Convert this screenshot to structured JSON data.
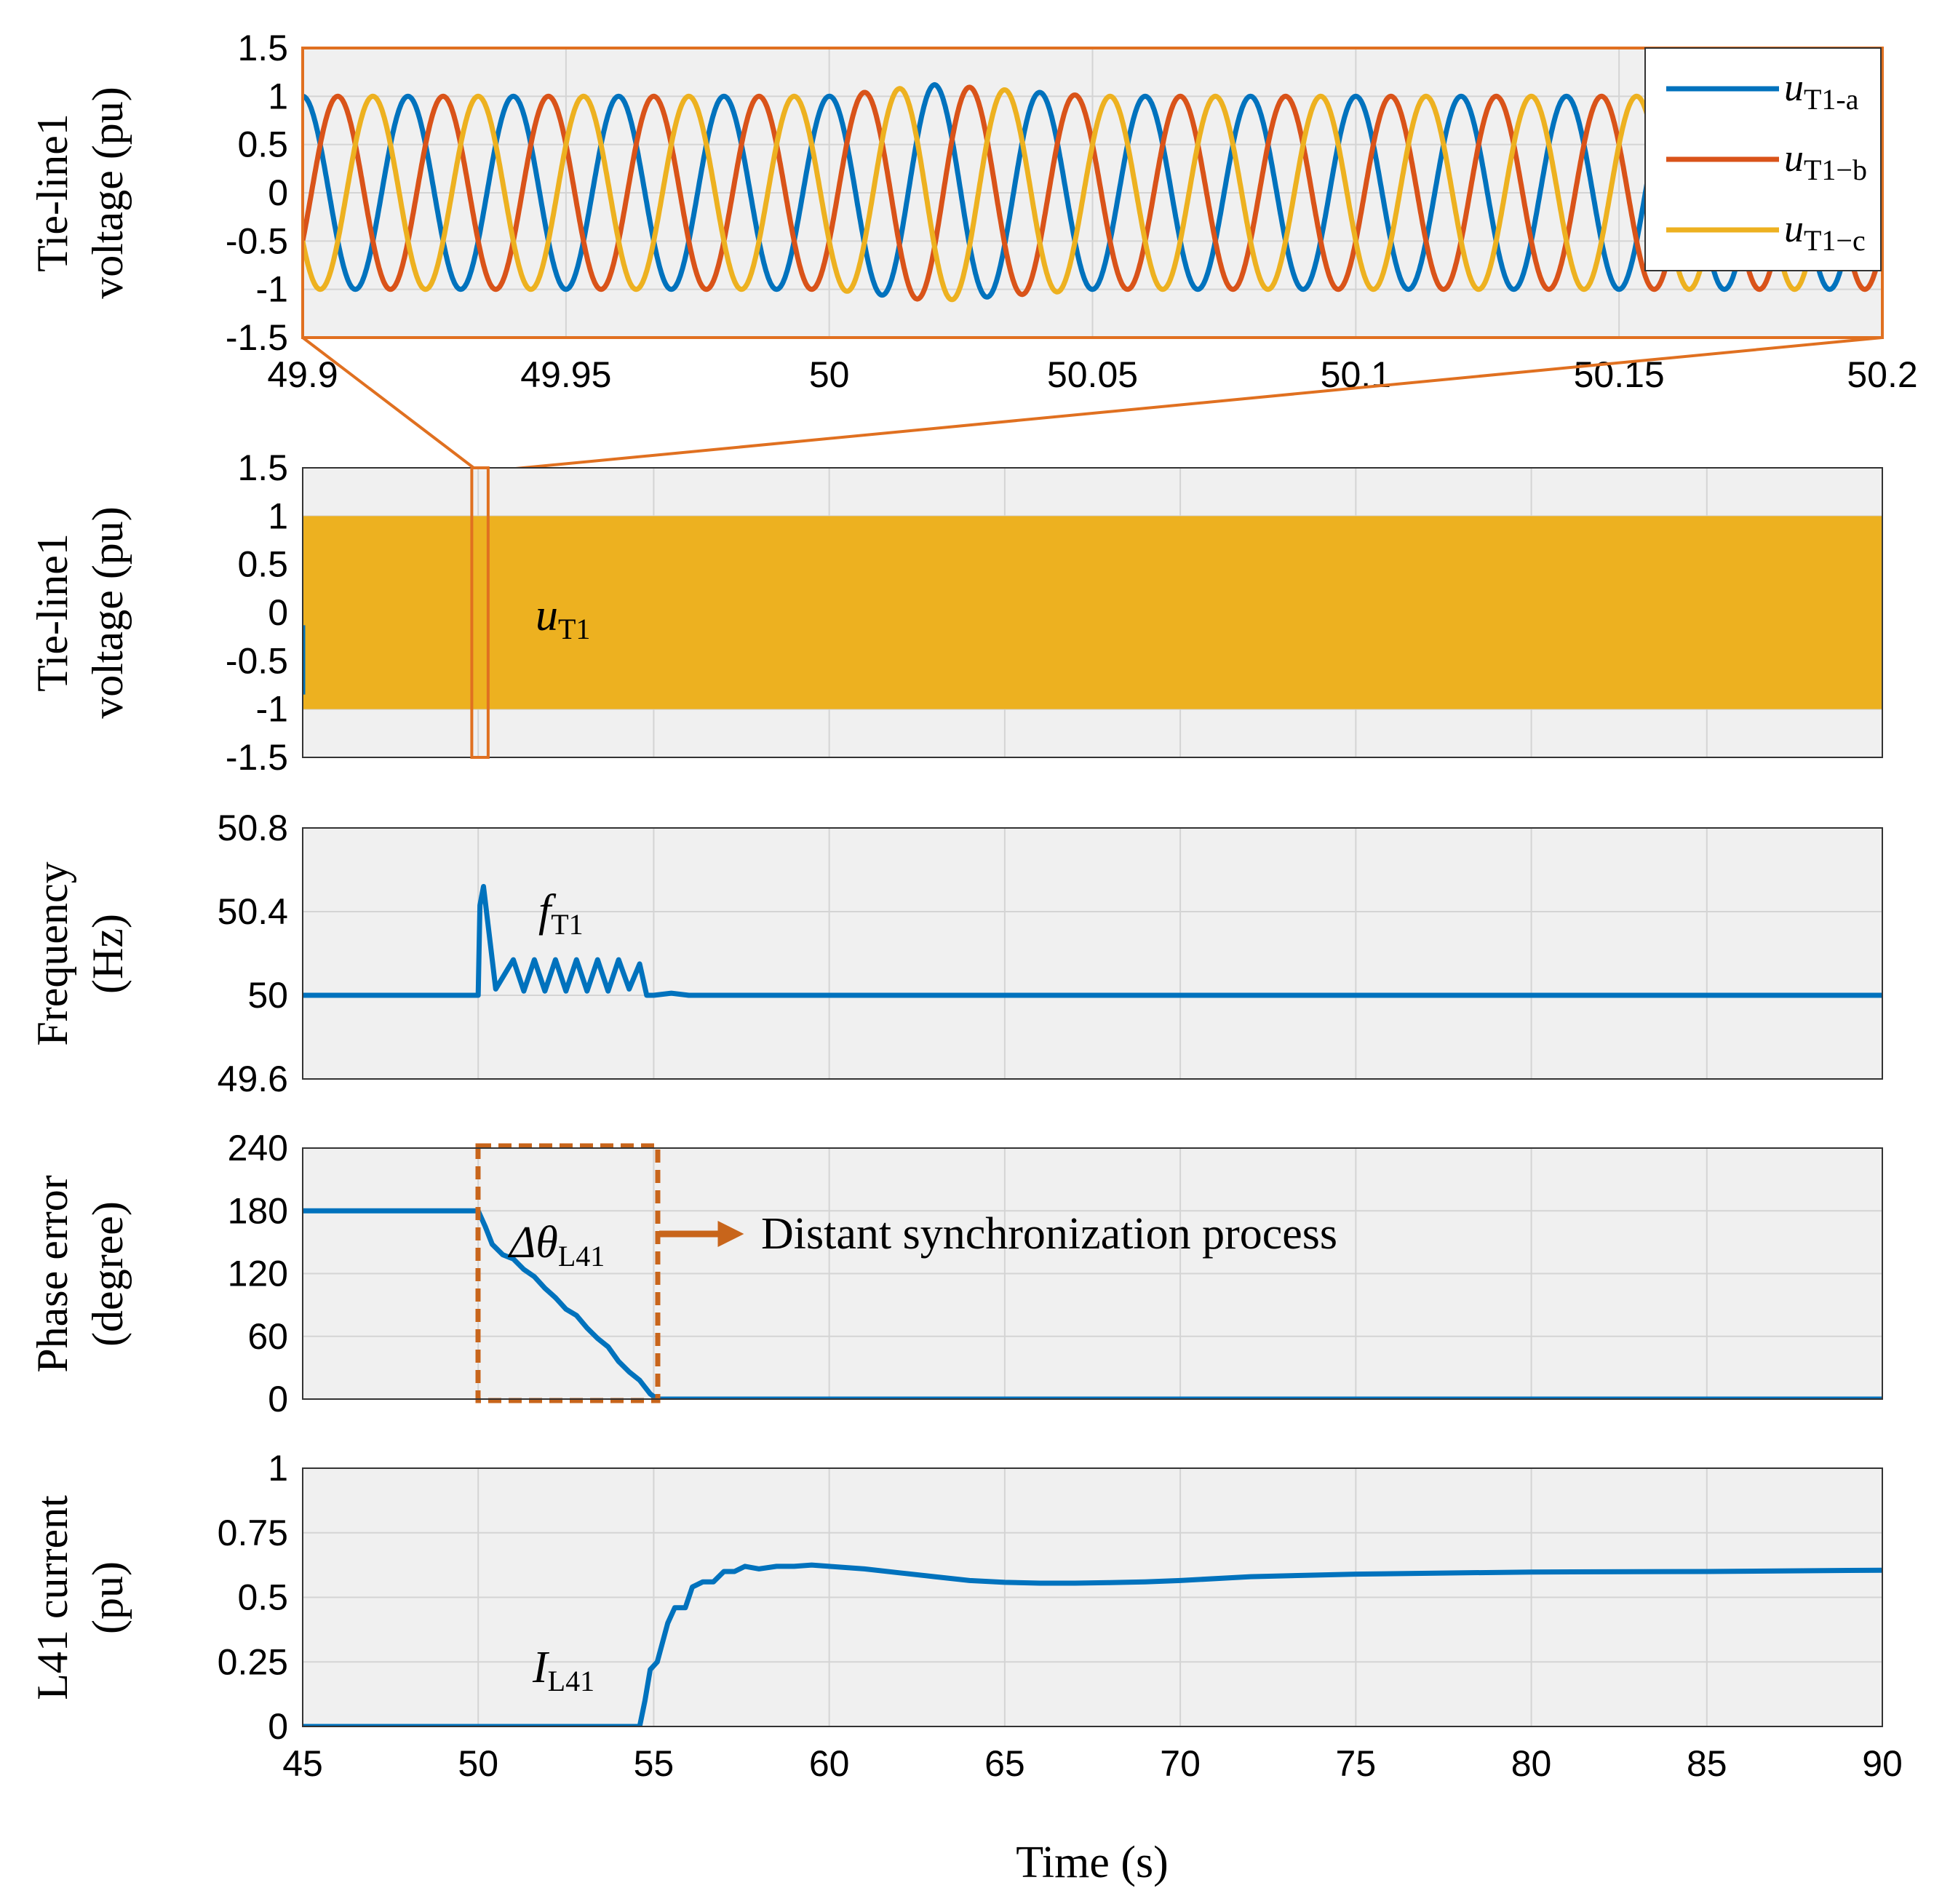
{
  "colors": {
    "phase_a": "#0072BD",
    "phase_b": "#D95319",
    "phase_c": "#EDB120",
    "zoom": "#E07020",
    "box": "#C8651B",
    "grid": "#cfcfcf",
    "bg": "#f0f0f0"
  },
  "chart_data": [
    {
      "id": "zoom",
      "type": "line",
      "ylabel": [
        "Tie-line1",
        "voltage (pu)"
      ],
      "xlim": [
        49.9,
        50.2
      ],
      "ylim": [
        -1.5,
        1.5
      ],
      "xticks": [
        "49.9",
        "49.95",
        "50",
        "50.05",
        "50.1",
        "50.15",
        "50.2"
      ],
      "yticks": [
        "1.5",
        "1",
        "0.5",
        "0",
        "-0.5",
        "-1",
        "-1.5"
      ],
      "series": [
        {
          "name": "phase a",
          "amplitude": 1.0,
          "frequency_hz": 50,
          "phase_deg": 0
        },
        {
          "name": "phase b",
          "amplitude": 1.0,
          "frequency_hz": 50,
          "phase_deg": -120
        },
        {
          "name": "phase c",
          "amplitude": 1.0,
          "frequency_hz": 50,
          "phase_deg": 120
        }
      ],
      "disturbance": {
        "start": 50.0,
        "peak_time": 50.02,
        "peak_amplitude": 1.12,
        "end": 50.05
      },
      "legend": [
        {
          "main": "u",
          "sub": "T1-a"
        },
        {
          "main": "u",
          "sub": "T1−b"
        },
        {
          "main": "u",
          "sub": "T1−c"
        }
      ]
    },
    {
      "id": "voltage",
      "type": "area",
      "ylabel": [
        "Tie-line1",
        "voltage (pu)"
      ],
      "xlim": [
        45,
        90
      ],
      "ylim": [
        -1.5,
        1.5
      ],
      "yticks": [
        "1.5",
        "1",
        "0.5",
        "0",
        "-0.5",
        "-1",
        "-1.5"
      ],
      "envelope": {
        "upper": 1.0,
        "lower": -1.0,
        "start": 45,
        "end": 90
      },
      "zoom_window": [
        49.9,
        50.2
      ],
      "annotation": {
        "main": "u",
        "sub": "T1"
      }
    },
    {
      "id": "frequency",
      "type": "line",
      "ylabel": [
        "Frequency",
        "(Hz)"
      ],
      "xlim": [
        45,
        90
      ],
      "ylim": [
        49.6,
        50.8
      ],
      "yticks": [
        "50.8",
        "50.4",
        "50",
        "49.6"
      ],
      "x": [
        45,
        50.0,
        50.05,
        50.15,
        50.5,
        51.0,
        51.3,
        51.6,
        51.9,
        52.2,
        52.5,
        52.8,
        53.1,
        53.4,
        53.7,
        54.0,
        54.3,
        54.6,
        54.8,
        55.0,
        55.5,
        56,
        90
      ],
      "y": [
        50,
        50,
        50.43,
        50.52,
        50.03,
        50.17,
        50.02,
        50.17,
        50.02,
        50.17,
        50.02,
        50.17,
        50.02,
        50.17,
        50.02,
        50.17,
        50.03,
        50.15,
        50.0,
        50.0,
        50.01,
        50.0,
        50.0
      ],
      "annotation": {
        "main": "f",
        "sub": "T1"
      }
    },
    {
      "id": "phase",
      "type": "line",
      "ylabel": [
        "Phase error",
        "(degree)"
      ],
      "xlim": [
        45,
        90
      ],
      "ylim": [
        0,
        240
      ],
      "yticks": [
        "240",
        "180",
        "120",
        "60",
        "0"
      ],
      "x": [
        45,
        50.0,
        50.2,
        50.4,
        50.7,
        51.0,
        51.3,
        51.6,
        51.9,
        52.2,
        52.5,
        52.8,
        53.1,
        53.4,
        53.7,
        54.0,
        54.3,
        54.6,
        54.9,
        55.1,
        90
      ],
      "y": [
        180,
        180,
        165,
        148,
        138,
        134,
        124,
        117,
        106,
        97,
        86,
        80,
        68,
        58,
        50,
        36,
        26,
        18,
        5,
        0,
        0
      ],
      "annotation": {
        "main": "Δθ",
        "sub": "L41"
      },
      "box": {
        "x0": 50.0,
        "x1": 55.1,
        "y0": 0,
        "y1": 240
      },
      "arrow_label": "Distant synchronization process"
    },
    {
      "id": "current",
      "type": "line",
      "xlabel": "Time (s)",
      "ylabel": [
        "L41 current",
        "(pu)"
      ],
      "xlim": [
        45,
        90
      ],
      "ylim": [
        0,
        1
      ],
      "xticks": [
        "45",
        "50",
        "55",
        "60",
        "65",
        "70",
        "75",
        "80",
        "85",
        "90"
      ],
      "yticks": [
        "1",
        "0.75",
        "0.5",
        "0.25",
        "0"
      ],
      "x": [
        45,
        54.6,
        54.75,
        54.9,
        55.1,
        55.4,
        55.6,
        55.9,
        56.1,
        56.4,
        56.7,
        57.0,
        57.3,
        57.6,
        58.0,
        58.5,
        59.0,
        59.5,
        60.0,
        61,
        62,
        63,
        64,
        65,
        66,
        67,
        68,
        69,
        70,
        72,
        75,
        80,
        85,
        90
      ],
      "y": [
        0,
        0,
        0.1,
        0.22,
        0.25,
        0.4,
        0.46,
        0.46,
        0.54,
        0.56,
        0.56,
        0.6,
        0.6,
        0.62,
        0.61,
        0.62,
        0.62,
        0.625,
        0.62,
        0.61,
        0.595,
        0.58,
        0.565,
        0.558,
        0.555,
        0.555,
        0.557,
        0.56,
        0.565,
        0.58,
        0.59,
        0.598,
        0.6,
        0.605
      ],
      "annotation": {
        "main": "I",
        "sub": "L41"
      }
    }
  ]
}
